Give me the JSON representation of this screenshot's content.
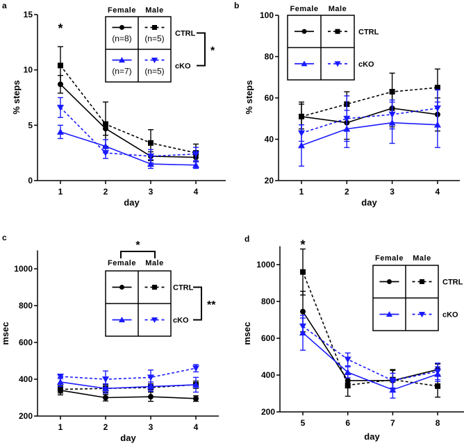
{
  "colors": {
    "ctrl": "#000000",
    "cko": "#1a1aff"
  },
  "series_legend": [
    {
      "name": "Female CTRL",
      "group": "ctrl",
      "sex": "Female",
      "marker": "circle",
      "dashed": false
    },
    {
      "name": "Male CTRL",
      "group": "ctrl",
      "sex": "Male",
      "marker": "square",
      "dashed": true
    },
    {
      "name": "Female cKO",
      "group": "cko",
      "sex": "Female",
      "marker": "triangle-up",
      "dashed": false
    },
    {
      "name": "Male cKO",
      "group": "cko",
      "sex": "Male",
      "marker": "triangle-down",
      "dashed": true
    }
  ],
  "chart_data": [
    {
      "panel": "a",
      "type": "line",
      "xlabel": "day",
      "ylabel": "% steps",
      "x": [
        1,
        2,
        3,
        4
      ],
      "ylim": [
        0,
        15
      ],
      "yticks": [
        0,
        5,
        10,
        15
      ],
      "legend": {
        "col_headers": [
          "Female",
          "Male"
        ],
        "row_labels": [
          "CTRL",
          "cKO"
        ],
        "n_labels": [
          "(n=8)",
          "(n=5)",
          "(n=7)",
          "(n=5)"
        ],
        "row_bracket_label": "*"
      },
      "annotations": [
        {
          "x": 1,
          "text": "*"
        }
      ],
      "series": [
        {
          "name": "Female CTRL",
          "values": [
            8.7,
            4.7,
            2.2,
            2.1
          ],
          "errors": [
            0.8,
            0.6,
            0.4,
            0.4
          ]
        },
        {
          "name": "Male CTRL",
          "values": [
            10.4,
            5.1,
            3.4,
            2.5
          ],
          "errors": [
            1.7,
            2.0,
            1.2,
            0.8
          ]
        },
        {
          "name": "Female cKO",
          "values": [
            4.4,
            3.1,
            1.5,
            1.4
          ],
          "errors": [
            0.6,
            0.6,
            0.4,
            0.3
          ]
        },
        {
          "name": "Male cKO",
          "values": [
            6.6,
            2.5,
            2.2,
            2.4
          ],
          "errors": [
            0.9,
            0.5,
            0.6,
            0.6
          ]
        }
      ]
    },
    {
      "panel": "b",
      "type": "line",
      "xlabel": "day",
      "ylabel": "% steps",
      "x": [
        1,
        2,
        3,
        4
      ],
      "ylim": [
        20,
        100
      ],
      "yticks": [
        20,
        40,
        60,
        80,
        100
      ],
      "legend": {
        "col_headers": [
          "Female",
          "Male"
        ],
        "row_labels": [
          "CTRL",
          "cKO"
        ]
      },
      "series": [
        {
          "name": "Female CTRL",
          "values": [
            51,
            48,
            55,
            52
          ],
          "errors": [
            6,
            8,
            9,
            8
          ]
        },
        {
          "name": "Male CTRL",
          "values": [
            51,
            57,
            63,
            65
          ],
          "errors": [
            7,
            6,
            9,
            9
          ]
        },
        {
          "name": "Female cKO",
          "values": [
            37,
            45,
            48,
            47
          ],
          "errors": [
            10,
            9,
            10,
            11
          ]
        },
        {
          "name": "Male cKO",
          "values": [
            43,
            50,
            52,
            55
          ],
          "errors": [
            4,
            11,
            7,
            9
          ]
        }
      ]
    },
    {
      "panel": "c",
      "type": "line",
      "xlabel": "day",
      "ylabel": "msec",
      "x": [
        1,
        2,
        3,
        4
      ],
      "ylim": [
        200,
        1100
      ],
      "yticks": [
        200,
        400,
        600,
        800,
        1000
      ],
      "legend": {
        "col_headers": [
          "Female",
          "Male"
        ],
        "row_labels": [
          "CTRL",
          "cKO"
        ],
        "col_bracket_label": "*",
        "row_bracket_label": "**"
      },
      "series": [
        {
          "name": "Female CTRL",
          "values": [
            340,
            300,
            305,
            295
          ],
          "errors": [
            25,
            18,
            25,
            15
          ]
        },
        {
          "name": "Male CTRL",
          "values": [
            345,
            350,
            355,
            370
          ],
          "errors": [
            20,
            20,
            20,
            20
          ]
        },
        {
          "name": "Female cKO",
          "values": [
            385,
            350,
            360,
            370
          ],
          "errors": [
            25,
            25,
            25,
            40
          ]
        },
        {
          "name": "Male cKO",
          "values": [
            415,
            400,
            410,
            460
          ],
          "errors": [
            12,
            45,
            40,
            20
          ]
        }
      ]
    },
    {
      "panel": "d",
      "type": "line",
      "xlabel": "day",
      "ylabel": "msec",
      "x": [
        5,
        6,
        7,
        8
      ],
      "ylim": [
        200,
        1100
      ],
      "yticks": [
        200,
        400,
        600,
        800,
        1000
      ],
      "legend": {
        "col_headers": [
          "Female",
          "Male"
        ],
        "row_labels": [
          "CTRL",
          "cKO"
        ]
      },
      "annotations": [
        {
          "x": 5,
          "text": "*"
        }
      ],
      "series": [
        {
          "name": "Female CTRL",
          "values": [
            745,
            370,
            370,
            430
          ],
          "errors": [
            110,
            40,
            60,
            30
          ]
        },
        {
          "name": "Male CTRL",
          "values": [
            960,
            345,
            375,
            340
          ],
          "errors": [
            125,
            60,
            50,
            60
          ]
        },
        {
          "name": "Female cKO",
          "values": [
            630,
            415,
            320,
            405
          ],
          "errors": [
            95,
            30,
            45,
            40
          ]
        },
        {
          "name": "Male cKO",
          "values": [
            665,
            485,
            370,
            420
          ],
          "errors": [
            45,
            35,
            40,
            45
          ]
        }
      ]
    }
  ]
}
